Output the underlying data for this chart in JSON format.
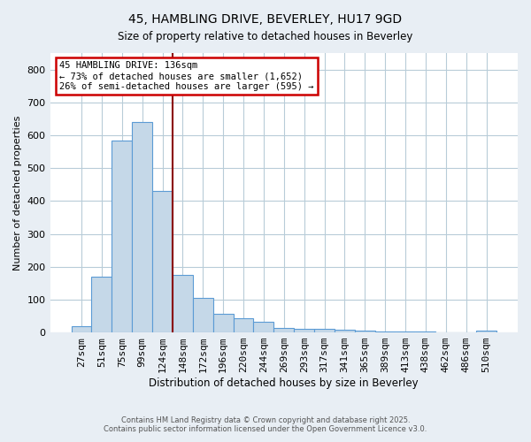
{
  "title1": "45, HAMBLING DRIVE, BEVERLEY, HU17 9GD",
  "title2": "Size of property relative to detached houses in Beverley",
  "xlabel": "Distribution of detached houses by size in Beverley",
  "ylabel": "Number of detached properties",
  "categories": [
    "27sqm",
    "51sqm",
    "75sqm",
    "99sqm",
    "124sqm",
    "148sqm",
    "172sqm",
    "196sqm",
    "220sqm",
    "244sqm",
    "269sqm",
    "293sqm",
    "317sqm",
    "341sqm",
    "365sqm",
    "389sqm",
    "413sqm",
    "438sqm",
    "462sqm",
    "486sqm",
    "510sqm"
  ],
  "values": [
    20,
    170,
    585,
    640,
    430,
    175,
    105,
    57,
    42,
    32,
    15,
    12,
    10,
    7,
    6,
    4,
    3,
    2,
    1,
    1,
    6
  ],
  "bar_color": "#c5d8e8",
  "bar_edge_color": "#5b9bd5",
  "vline_color": "#8b0000",
  "annotation_line1": "45 HAMBLING DRIVE: 136sqm",
  "annotation_line2": "← 73% of detached houses are smaller (1,652)",
  "annotation_line3": "26% of semi-detached houses are larger (595) →",
  "annotation_box_color": "#ffffff",
  "annotation_box_edge_color": "#cc0000",
  "ylim": [
    0,
    850
  ],
  "yticks": [
    0,
    100,
    200,
    300,
    400,
    500,
    600,
    700,
    800
  ],
  "footer1": "Contains HM Land Registry data © Crown copyright and database right 2025.",
  "footer2": "Contains public sector information licensed under the Open Government Licence v3.0.",
  "bg_color": "#e8eef4",
  "plot_bg_color": "#ffffff",
  "grid_color": "#b8ccd8"
}
